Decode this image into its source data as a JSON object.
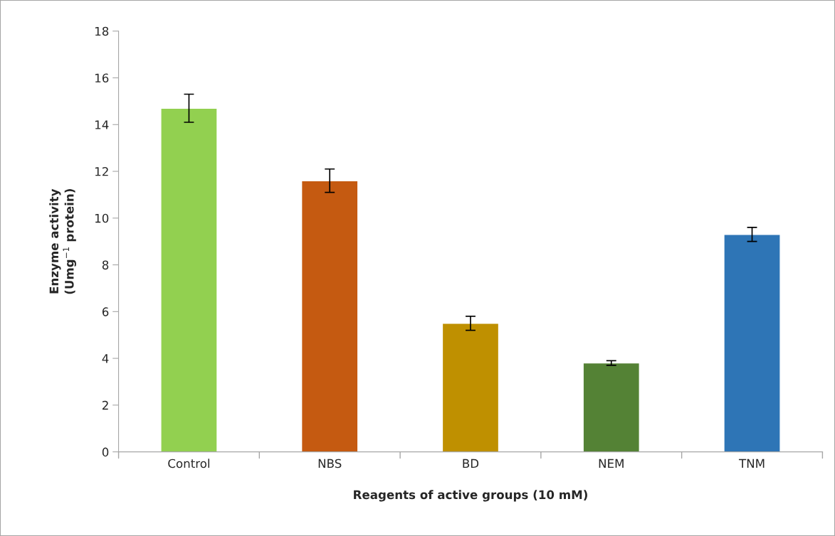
{
  "chart_data": {
    "type": "bar",
    "xlabel": "Reagents of active groups (10 mM)",
    "ylabel": "Enzyme activity\n(Umg$^{−1}$ protein)",
    "categories": [
      "Control",
      "NBS",
      "BD",
      "NEM",
      "TNM"
    ],
    "values": [
      14.7,
      11.6,
      5.5,
      3.8,
      9.3
    ],
    "errors": [
      0.6,
      0.5,
      0.3,
      0.1,
      0.3
    ],
    "colors": [
      "#92d050",
      "#c55a11",
      "#bf9000",
      "#548235",
      "#2e75b6"
    ],
    "ylim": [
      0,
      18
    ],
    "yticks": [
      0,
      2,
      4,
      6,
      8,
      10,
      12,
      14,
      16,
      18
    ],
    "grid": false
  }
}
